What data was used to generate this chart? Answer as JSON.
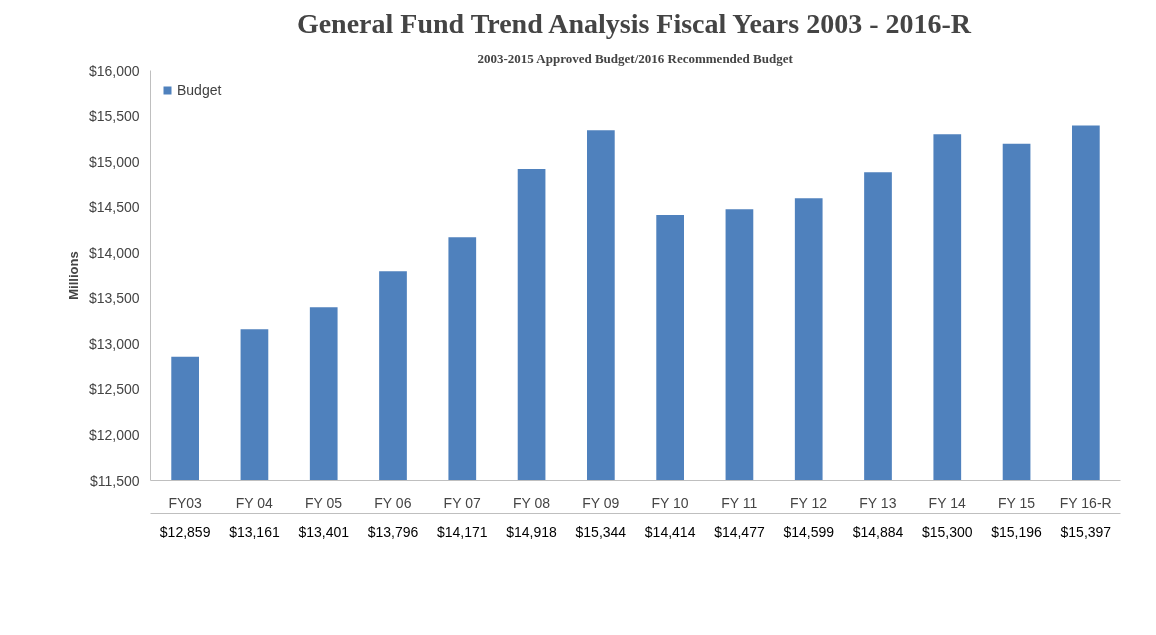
{
  "chart_data": {
    "type": "bar",
    "title": "General Fund Trend Analysis Fiscal Years 2003 - 2016-R",
    "subtitle": "2003-2015 Approved Budget/2016 Recommended Budget",
    "ylabel": "Millions",
    "categories": [
      "FY03",
      "FY 04",
      "FY 05",
      "FY 06",
      "FY 07",
      "FY 08",
      "FY 09",
      "FY 10",
      "FY 11",
      "FY 12",
      "FY 13",
      "FY 14",
      "FY 15",
      "FY 16-R"
    ],
    "series": [
      {
        "name": "Budget",
        "color": "#4f81bd",
        "values": [
          12859,
          13161,
          13401,
          13796,
          14171,
          14918,
          15344,
          14414,
          14477,
          14599,
          14884,
          15300,
          15196,
          15397
        ],
        "value_labels": [
          "$12,859",
          "$13,161",
          "$13,401",
          "$13,796",
          "$14,171",
          "$14,918",
          "$15,344",
          "$14,414",
          "$14,477",
          "$14,599",
          "$14,884",
          "$15,300",
          "$15,196",
          "$15,397"
        ]
      }
    ],
    "ylim": [
      11500,
      16000
    ],
    "yticks": [
      {
        "value": 11500,
        "label": "$11,500"
      },
      {
        "value": 12000,
        "label": "$12,000"
      },
      {
        "value": 12500,
        "label": "$12,500"
      },
      {
        "value": 13000,
        "label": "$13,000"
      },
      {
        "value": 13500,
        "label": "$13,500"
      },
      {
        "value": 14000,
        "label": "$14,000"
      },
      {
        "value": 14500,
        "label": "$14,500"
      },
      {
        "value": 15000,
        "label": "$15,000"
      },
      {
        "value": 15500,
        "label": "$15,500"
      },
      {
        "value": 16000,
        "label": "$16,000"
      }
    ],
    "grid": false,
    "legend": "top left"
  }
}
